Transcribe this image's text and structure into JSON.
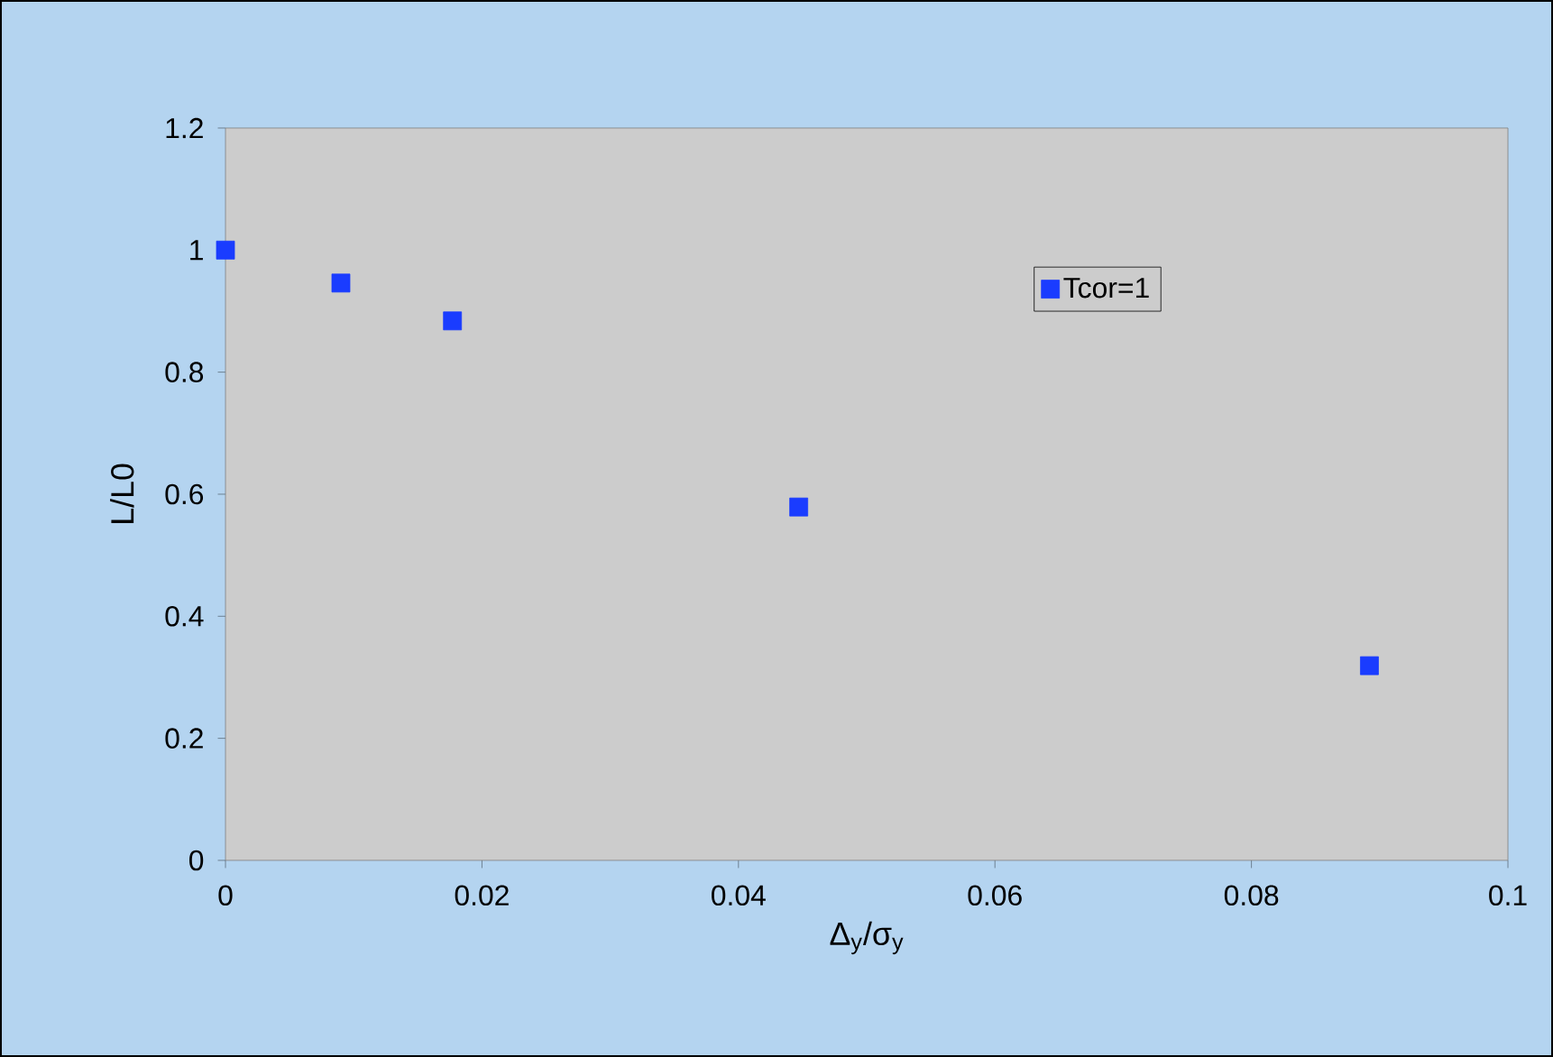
{
  "chart_data": {
    "type": "scatter",
    "xlabel": "Δ$_{y}$/σ$_{y}$",
    "ylabel": "L/L0",
    "x": [
      0,
      0.009,
      0.0177,
      0.0447,
      0.0892
    ],
    "series": [
      {
        "name": "Tcor=1",
        "color": "#1a3cff",
        "values": [
          1.0,
          0.946,
          0.884,
          0.579,
          0.319
        ]
      }
    ],
    "xlim": [
      0,
      0.1
    ],
    "ylim": [
      0,
      1.2
    ],
    "xticks": [
      0,
      0.02,
      0.04,
      0.06,
      0.08,
      0.1
    ],
    "yticks": [
      0,
      0.2,
      0.4,
      0.6,
      0.8,
      1,
      1.2
    ],
    "marker": "square",
    "grid": false,
    "legend": "top right"
  }
}
